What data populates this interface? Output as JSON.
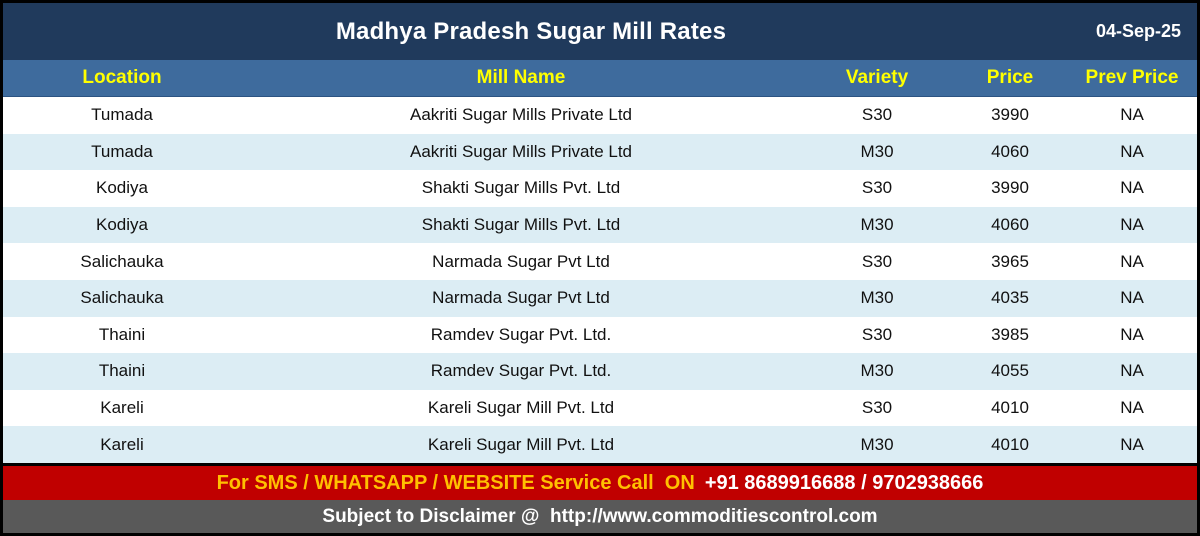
{
  "header": {
    "title": "Madhya Pradesh Sugar Mill Rates",
    "date": "04-Sep-25"
  },
  "table": {
    "columns": [
      "Location",
      "Mill Name",
      "Variety",
      "Price",
      "Prev Price"
    ],
    "rows": [
      [
        "Tumada",
        "Aakriti Sugar Mills Private Ltd",
        "S30",
        "3990",
        "NA"
      ],
      [
        "Tumada",
        "Aakriti Sugar Mills Private Ltd",
        "M30",
        "4060",
        "NA"
      ],
      [
        "Kodiya",
        "Shakti Sugar Mills Pvt. Ltd",
        "S30",
        "3990",
        "NA"
      ],
      [
        "Kodiya",
        "Shakti Sugar Mills Pvt. Ltd",
        "M30",
        "4060",
        "NA"
      ],
      [
        "Salichauka",
        "Narmada Sugar Pvt Ltd",
        "S30",
        "3965",
        "NA"
      ],
      [
        "Salichauka",
        "Narmada Sugar Pvt Ltd",
        "M30",
        "4035",
        "NA"
      ],
      [
        "Thaini",
        "Ramdev Sugar Pvt. Ltd.",
        "S30",
        "3985",
        "NA"
      ],
      [
        "Thaini",
        "Ramdev Sugar Pvt. Ltd.",
        "M30",
        "4055",
        "NA"
      ],
      [
        "Kareli",
        "Kareli Sugar Mill Pvt. Ltd",
        "S30",
        "4010",
        "NA"
      ],
      [
        "Kareli",
        "Kareli Sugar Mill Pvt. Ltd",
        "M30",
        "4010",
        "NA"
      ]
    ]
  },
  "banner": {
    "label": "For SMS / WHATSAPP / WEBSITE Service Call  ON",
    "numbers": "+91 8689916688 / 9702938666"
  },
  "footer": {
    "text": "Subject to Disclaimer @  http://www.commoditiescontrol.com"
  },
  "colors": {
    "title_bar": "#203A5C",
    "header_row": "#3E6B9D",
    "header_text": "#FFFF00",
    "alt_row": "#DCEDF4",
    "banner_bg": "#C00000",
    "banner_label": "#FFC000",
    "footer_bg": "#595959",
    "border": "#000000"
  }
}
